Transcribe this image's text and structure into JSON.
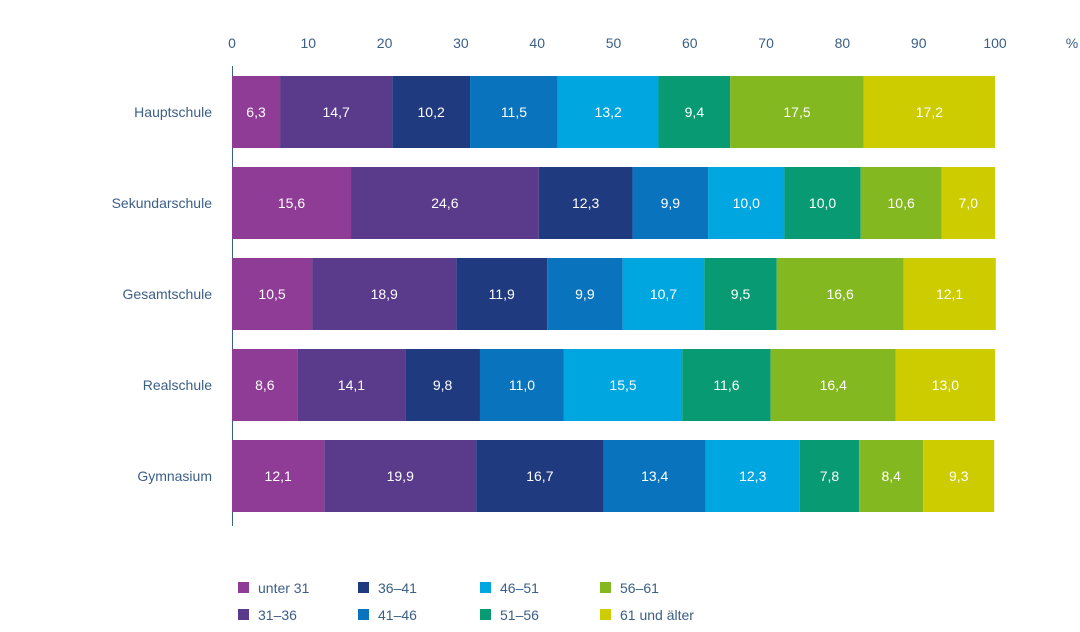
{
  "chart_data": {
    "type": "bar",
    "orientation": "horizontal",
    "stacked": true,
    "x_unit": "%",
    "xlim": [
      0,
      100
    ],
    "x_ticks": [
      0,
      10,
      20,
      30,
      40,
      50,
      60,
      70,
      80,
      90,
      100
    ],
    "grid": false,
    "legend_position": "bottom",
    "categories": [
      "Hauptschule",
      "Sekundarschule",
      "Gesamtschule",
      "Realschule",
      "Gymnasium"
    ],
    "series": [
      {
        "name": "unter 31",
        "color": "#8e3c96",
        "values": [
          "6,3",
          "15,6",
          "10,5",
          "8,6",
          "12,1"
        ]
      },
      {
        "name": "31–36",
        "color": "#5a3a8a",
        "values": [
          "14,7",
          "24,6",
          "18,9",
          "14,1",
          "19,9"
        ]
      },
      {
        "name": "36–41",
        "color": "#203a7f",
        "values": [
          "10,2",
          "12,3",
          "11,9",
          "9,8",
          "16,7"
        ]
      },
      {
        "name": "41–46",
        "color": "#0a73bd",
        "values": [
          "11,5",
          "9,9",
          "9,9",
          "11,0",
          "13,4"
        ]
      },
      {
        "name": "46–51",
        "color": "#00a6df",
        "values": [
          "13,2",
          "10,0",
          "10,7",
          "15,5",
          "12,3"
        ]
      },
      {
        "name": "51–56",
        "color": "#089a72",
        "values": [
          "9,4",
          "10,0",
          "9,5",
          "11,6",
          "7,8"
        ]
      },
      {
        "name": "56–61",
        "color": "#84b820",
        "values": [
          "17,5",
          "10,6",
          "16,6",
          "16,4",
          "8,4"
        ]
      },
      {
        "name": "61 und älter",
        "color": "#cccc00",
        "values": [
          "17,2",
          "7,0",
          "12,1",
          "13,0",
          "9,3"
        ]
      }
    ]
  },
  "colors": {
    "axis": "#3b5f86",
    "tick_text": "#3b5f86"
  }
}
